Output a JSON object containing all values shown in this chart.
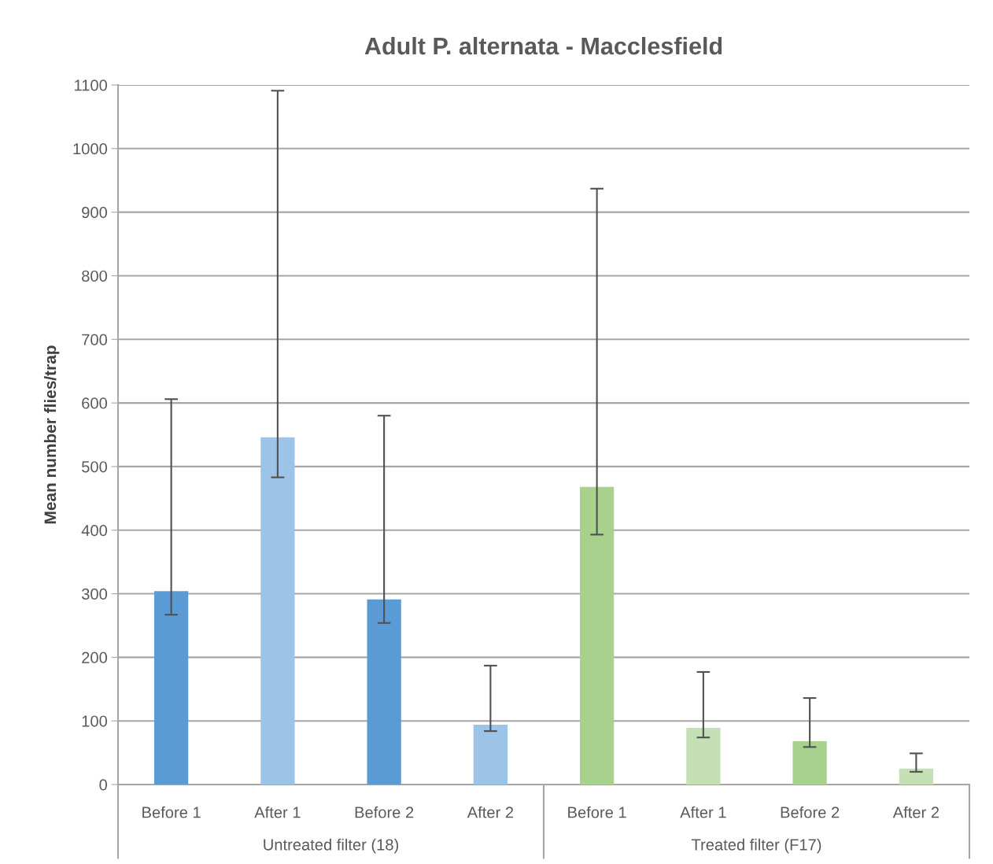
{
  "chart_data": {
    "type": "bar",
    "title": "Adult P. alternata - Macclesfield",
    "ylabel": "Mean number flies/trap",
    "categories": [
      "Before 1",
      "After 1",
      "Before 2",
      "After 2",
      "Before 1",
      "After 1",
      "Before 2",
      "After 2"
    ],
    "values": [
      304,
      546,
      291,
      94,
      468,
      89,
      68,
      25
    ],
    "colors": [
      "#5b9bd5",
      "#9dc3e6",
      "#5b9bd5",
      "#9dc3e6",
      "#a9d18e",
      "#c5e0b4",
      "#a9d18e",
      "#c5e0b4"
    ],
    "errors": [
      [
        267,
        606
      ],
      [
        483,
        1091
      ],
      [
        254,
        580
      ],
      [
        84,
        187
      ],
      [
        393,
        937
      ],
      [
        74,
        177
      ],
      [
        59,
        136
      ],
      [
        20,
        49
      ]
    ],
    "annotations": [
      "Untreated filter (18)",
      "Treated filter (F17)"
    ],
    "ylim": [
      0,
      1100
    ],
    "yticks": [
      0,
      100,
      200,
      300,
      400,
      500,
      600,
      700,
      800,
      900,
      1000,
      1100
    ],
    "grid": "y",
    "legend": false
  }
}
